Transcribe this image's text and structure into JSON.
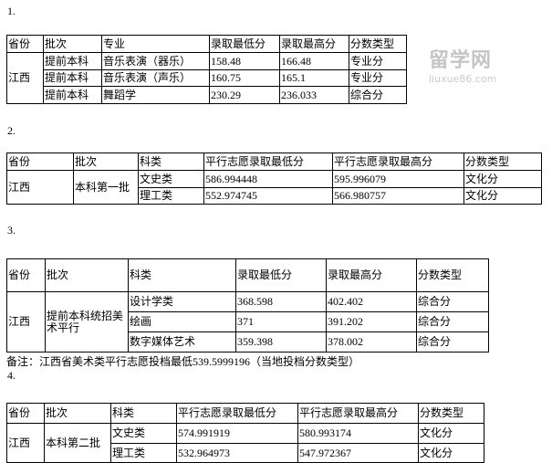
{
  "sections": [
    {
      "number": "1.",
      "headers": [
        "省份",
        "批次",
        "专业",
        "录取最低分",
        "录取最高分",
        "分数类型"
      ],
      "province": "江西",
      "rows": [
        [
          "提前本科",
          "音乐表演（器乐）",
          "158.48",
          "166.48",
          "专业分"
        ],
        [
          "提前本科",
          "音乐表演（声乐）",
          "160.75",
          "165.1",
          "专业分"
        ],
        [
          "提前本科",
          "舞蹈学",
          "230.29",
          "236.033",
          "综合分"
        ]
      ]
    },
    {
      "number": "2.",
      "headers": [
        "省份",
        "批次",
        "科类",
        "平行志愿录取最低分",
        "平行志愿录取最高分",
        "分数类型"
      ],
      "province": "江西",
      "batch": "本科第一批",
      "rows": [
        [
          "文史类",
          "586.994448",
          "595.996079",
          "文化分"
        ],
        [
          "理工类",
          "552.974745",
          "566.980757",
          "文化分"
        ]
      ]
    },
    {
      "number": "3.",
      "headers": [
        "省份",
        "批次",
        "科类",
        "录取最低分",
        "录取最高分",
        "分数类型"
      ],
      "province": "江西",
      "batch": "提前本科统招美术平行",
      "rows": [
        [
          "设计学类",
          "368.598",
          "402.402",
          "综合分"
        ],
        [
          "绘画",
          "371",
          "391.202",
          "综合分"
        ],
        [
          "数字媒体艺术",
          "359.398",
          "378.002",
          "综合分"
        ]
      ],
      "note": "备注：江西省美术类平行志愿投档最低539.5999196（当地投档分数类型）"
    },
    {
      "number": "4.",
      "headers": [
        "省份",
        "批次",
        "科类",
        "平行志愿录取最低分",
        "平行志愿录取最高分",
        "分数类型"
      ],
      "province": "江西",
      "batch": "本科第二批",
      "rows": [
        [
          "文史类",
          "574.991919",
          "580.993174",
          "文化分"
        ],
        [
          "理工类",
          "532.964973",
          "547.972367",
          "文化分"
        ]
      ]
    }
  ],
  "watermark": {
    "logo": "留学网",
    "url": "liuxue86.com"
  }
}
